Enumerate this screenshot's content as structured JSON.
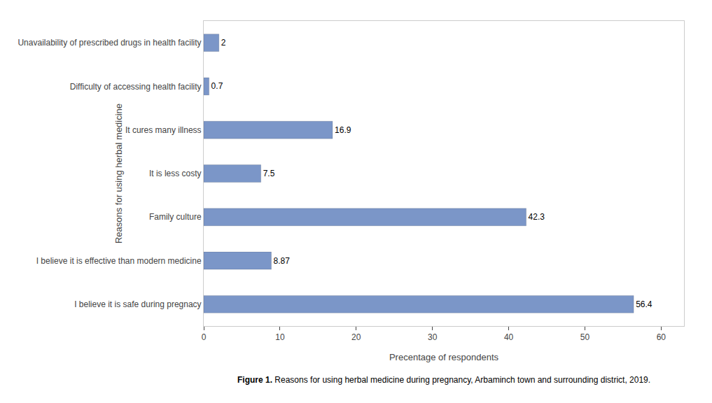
{
  "chart_data": {
    "type": "bar",
    "orientation": "horizontal",
    "categories": [
      "I believe it is safe during pregnacy",
      "I believe it is effective than modern medicine",
      "Family culture",
      "It is less costy",
      "It cures many illness",
      "Difficulty of accessing health facility",
      "Unavailability of prescribed drugs in health facility"
    ],
    "values": [
      56.4,
      8.87,
      42.3,
      7.5,
      16.9,
      0.7,
      2
    ],
    "color": "#7b96c8",
    "xlabel": "Precentage of respondents",
    "ylabel": "Reasons for using herbal medicine",
    "xlim": [
      0,
      63
    ],
    "xticks": [
      0,
      10,
      20,
      30,
      40,
      50,
      60
    ],
    "data_labels": true,
    "grid": false,
    "annotations": [
      "Figure 1.",
      "Reasons for using herbal medicine during pregnancy, Arbaminch town and surrounding district, 2019."
    ]
  }
}
